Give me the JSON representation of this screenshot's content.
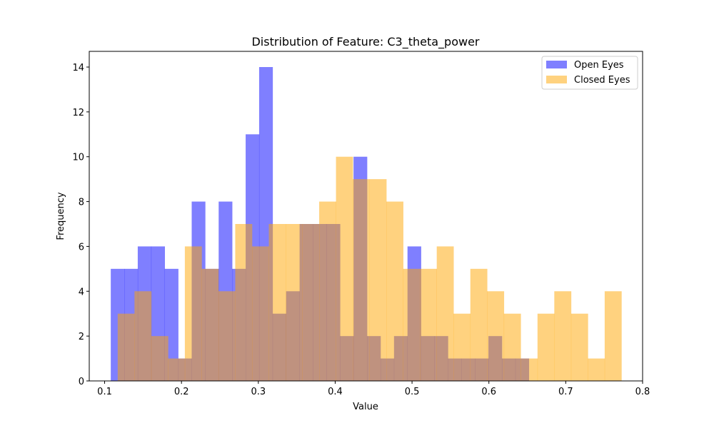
{
  "chart_data": {
    "type": "histogram",
    "title": "Distribution of Feature: C3_theta_power",
    "xlabel": "Value",
    "ylabel": "Frequency",
    "xlim": [
      0.08,
      0.8
    ],
    "ylim": [
      0,
      14.7
    ],
    "x_ticks": [
      0.1,
      0.2,
      0.3,
      0.4,
      0.5,
      0.6,
      0.7,
      0.8
    ],
    "y_ticks": [
      0,
      2,
      4,
      6,
      8,
      10,
      12,
      14
    ],
    "legend": {
      "position": "upper right",
      "entries": [
        "Open Eyes",
        "Closed Eyes"
      ]
    },
    "series": [
      {
        "name": "Open Eyes",
        "color": "#0000ff",
        "alpha": 0.5,
        "bin_start": 0.108,
        "bin_width": 0.01755,
        "counts": [
          5,
          5,
          6,
          6,
          5,
          1,
          8,
          5,
          8,
          5,
          11,
          14,
          3,
          4,
          7,
          7,
          7,
          2,
          10,
          2,
          1,
          2,
          6,
          2,
          2,
          1,
          1,
          1,
          2,
          1,
          1
        ]
      },
      {
        "name": "Closed Eyes",
        "color": "#ffa500",
        "alpha": 0.5,
        "bin_start": 0.117,
        "bin_width": 0.02185,
        "counts": [
          3,
          4,
          2,
          1,
          6,
          5,
          4,
          7,
          6,
          7,
          7,
          7,
          8,
          10,
          9,
          9,
          8,
          5,
          5,
          6,
          3,
          5,
          4,
          3,
          1,
          3,
          4,
          3,
          1,
          4
        ]
      }
    ]
  }
}
